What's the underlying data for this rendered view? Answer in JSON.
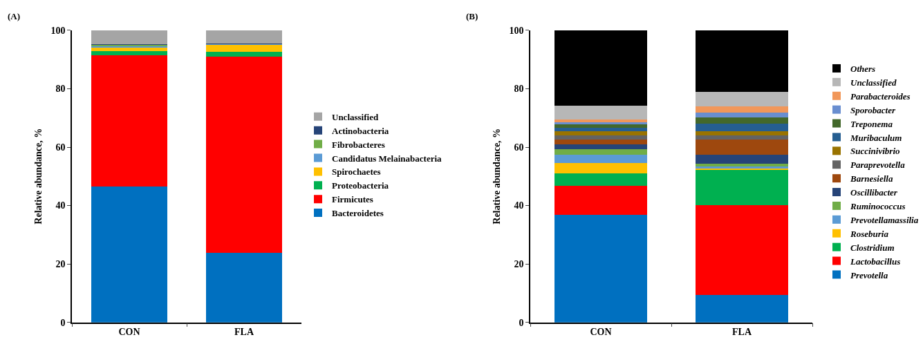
{
  "chart_data": [
    {
      "type": "bar",
      "title": "(A)",
      "ylabel": "Relative abundance, %",
      "categories": [
        "CON",
        "FLA"
      ],
      "stacked": true,
      "ylim": [
        0,
        100
      ],
      "yticks": [
        0,
        20,
        40,
        60,
        80,
        100
      ],
      "legend": "right",
      "series": [
        {
          "name": "Bacteroidetes",
          "color": "#0070c0",
          "values": [
            46.6,
            23.9
          ]
        },
        {
          "name": "Firmicutes",
          "color": "#ff0000",
          "values": [
            44.8,
            67.1
          ]
        },
        {
          "name": "Proteobacteria",
          "color": "#00b050",
          "values": [
            1.4,
            1.7
          ]
        },
        {
          "name": "Spirochaetes",
          "color": "#ffc000",
          "values": [
            1.2,
            2.5
          ]
        },
        {
          "name": "Candidatus Melainabacteria",
          "color": "#5b9bd5",
          "values": [
            0.7,
            0.1
          ]
        },
        {
          "name": "Fibrobacteres",
          "color": "#70ad47",
          "values": [
            0.4,
            0.1
          ]
        },
        {
          "name": "Actinobacteria",
          "color": "#264478",
          "values": [
            0.1,
            0.1
          ]
        },
        {
          "name": "Unclassified",
          "color": "#a5a5a5",
          "values": [
            4.8,
            4.5
          ]
        }
      ]
    },
    {
      "type": "bar",
      "title": "(B)",
      "ylabel": "Relative abundance, %",
      "categories": [
        "CON",
        "FLA"
      ],
      "stacked": true,
      "ylim": [
        0,
        100
      ],
      "yticks": [
        0,
        20,
        40,
        60,
        80,
        100
      ],
      "legend": "right",
      "series": [
        {
          "name": "Prevotella",
          "color": "#0070c0",
          "values": [
            36.8,
            9.4
          ]
        },
        {
          "name": "Lactobacillus",
          "color": "#ff0000",
          "values": [
            10.0,
            30.8
          ]
        },
        {
          "name": "Clostridium",
          "color": "#00b050",
          "values": [
            4.1,
            11.9
          ]
        },
        {
          "name": "Roseburia",
          "color": "#ffc000",
          "values": [
            3.7,
            0.6
          ]
        },
        {
          "name": "Prevotellamassilia",
          "color": "#5b9bd5",
          "values": [
            2.9,
            0.7
          ]
        },
        {
          "name": "Ruminococcus",
          "color": "#70ad47",
          "values": [
            1.8,
            1.0
          ]
        },
        {
          "name": "Oscillibacter",
          "color": "#264478",
          "values": [
            1.7,
            3.1
          ]
        },
        {
          "name": "Barnesiella",
          "color": "#9e480e",
          "values": [
            1.6,
            5.0
          ]
        },
        {
          "name": "Paraprevotella",
          "color": "#636363",
          "values": [
            1.4,
            1.5
          ]
        },
        {
          "name": "Succinivibrio",
          "color": "#997300",
          "values": [
            1.5,
            1.5
          ]
        },
        {
          "name": "Muribaculum",
          "color": "#255e91",
          "values": [
            1.2,
            2.6
          ]
        },
        {
          "name": "Treponema",
          "color": "#43682b",
          "values": [
            1.0,
            2.0
          ]
        },
        {
          "name": "Sporobacter",
          "color": "#698ed0",
          "values": [
            0.9,
            1.7
          ]
        },
        {
          "name": "Parabacteroides",
          "color": "#f1975a",
          "values": [
            0.8,
            2.2
          ]
        },
        {
          "name": "Unclassified",
          "color": "#b7b7b7",
          "values": [
            4.7,
            4.9
          ]
        },
        {
          "name": "Others",
          "color": "#000000",
          "values": [
            25.9,
            21.1
          ]
        }
      ]
    }
  ]
}
